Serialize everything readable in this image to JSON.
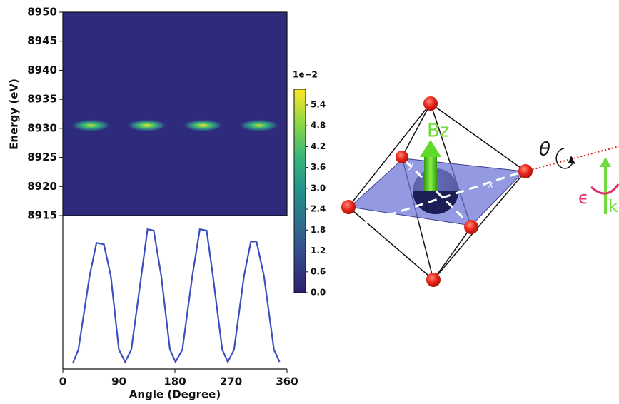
{
  "chart_data": [
    {
      "type": "heatmap",
      "ylabel": "Energy (eV)",
      "xlim": [
        0,
        360
      ],
      "ylim": [
        8915,
        8950
      ],
      "yticks": [
        8915,
        8920,
        8925,
        8930,
        8935,
        8940,
        8945,
        8950
      ],
      "background": "#2e2a7c",
      "spots": {
        "x": [
          45,
          135,
          225,
          315
        ],
        "y": [
          8930.5,
          8930.5,
          8930.5,
          8930.5
        ],
        "values": [
          5.4,
          5.7,
          5.7,
          5.4
        ]
      },
      "colormap": [
        "#2e1f6e",
        "#34458c",
        "#2f6d8e",
        "#22918b",
        "#35b779",
        "#8fd744",
        "#fde725"
      ],
      "colorbar": {
        "label": "1e−2",
        "lim": [
          0,
          5.85
        ],
        "ticks": [
          {
            "value": 0,
            "label": "0.0"
          },
          0.6,
          1.2,
          1.8,
          2.4,
          {
            "value": 3,
            "label": "3.0"
          },
          3.6,
          4.2,
          4.8,
          5.4
        ]
      }
    },
    {
      "type": "line",
      "xlabel": "Angle (Degree)",
      "color": "#3a4fc0",
      "xlim": [
        0,
        360
      ],
      "ylim": [
        0,
        1.08
      ],
      "xticks": [
        0,
        90,
        180,
        270,
        360
      ],
      "x": [
        16,
        25,
        43,
        54,
        66,
        77,
        90,
        100,
        110,
        126,
        136,
        146,
        158,
        172,
        181,
        192,
        208,
        220,
        231,
        241,
        256,
        265,
        275,
        291,
        302,
        311,
        323,
        339,
        348
      ],
      "values": [
        0,
        0.1,
        0.64,
        0.88,
        0.87,
        0.64,
        0.1,
        0.01,
        0.1,
        0.64,
        0.98,
        0.97,
        0.64,
        0.1,
        0.01,
        0.1,
        0.64,
        0.98,
        0.97,
        0.64,
        0.1,
        0.01,
        0.1,
        0.64,
        0.89,
        0.89,
        0.64,
        0.1,
        0.01
      ]
    }
  ],
  "diagram": {
    "bz": "Bz",
    "theta": "θ",
    "epsilon": "ϵ",
    "k": "k",
    "x": "x",
    "y": "y"
  }
}
